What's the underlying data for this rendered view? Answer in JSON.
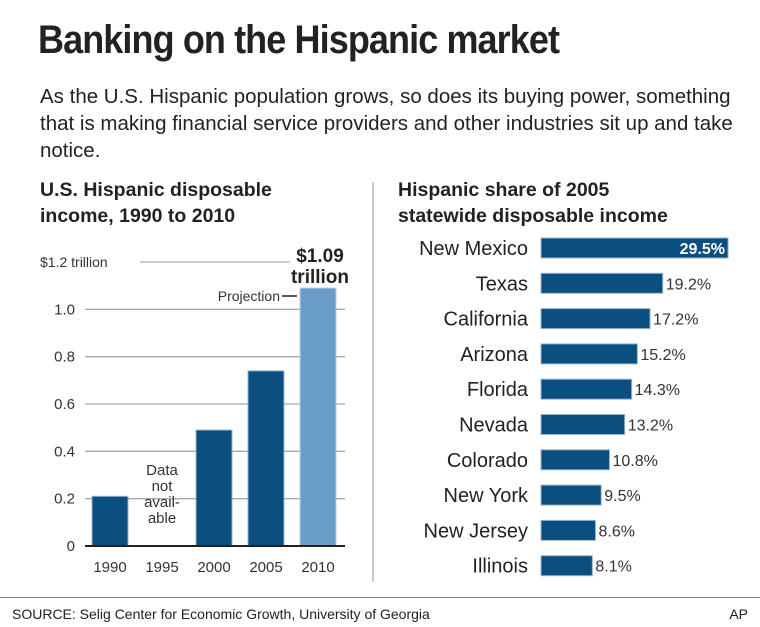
{
  "title": "Banking on the Hispanic market",
  "subtitle": "As the U.S. Hispanic population grows, so does its buying power, something that is making financial service providers and other industries sit up and take notice.",
  "chart_data": [
    {
      "type": "bar",
      "title": "U.S. Hispanic disposable income, 1990 to 2010",
      "categories": [
        "1990",
        "1995",
        "2000",
        "2005",
        "2010"
      ],
      "values": [
        0.21,
        null,
        0.49,
        0.74,
        1.09
      ],
      "ylim": [
        0,
        1.2
      ],
      "yticks": [
        "0",
        "0.2",
        "0.4",
        "0.6",
        "0.8",
        "1.0",
        "$1.2 trillion"
      ],
      "grid": true,
      "colors": {
        "actual": "#0b4f80",
        "projection": "#6a9cc8"
      },
      "annotations": {
        "missing": "Data not avail- able",
        "projection": "Projection",
        "top_value_line1": "$1.09",
        "top_value_line2": "trillion"
      }
    },
    {
      "type": "bar",
      "orientation": "horizontal",
      "title": "Hispanic share of 2005 statewide disposable income",
      "categories": [
        "New Mexico",
        "Texas",
        "California",
        "Arizona",
        "Florida",
        "Nevada",
        "Colorado",
        "New York",
        "New Jersey",
        "Illinois"
      ],
      "values": [
        29.5,
        19.2,
        17.2,
        15.2,
        14.3,
        13.2,
        10.8,
        9.5,
        8.6,
        8.1
      ],
      "labels": [
        "29.5%",
        "19.2%",
        "17.2%",
        "15.2%",
        "14.3%",
        "13.2%",
        "10.8%",
        "9.5%",
        "8.6%",
        "8.1%"
      ],
      "color": "#0b4f80"
    }
  ],
  "left_title": [
    "U.S. Hispanic disposable",
    "income, 1990 to 2010"
  ],
  "right_title": [
    "Hispanic share of 2005",
    "statewide disposable income"
  ],
  "footer": {
    "source": "SOURCE: Selig Center for Economic Growth, University of Georgia",
    "credit": "AP"
  }
}
